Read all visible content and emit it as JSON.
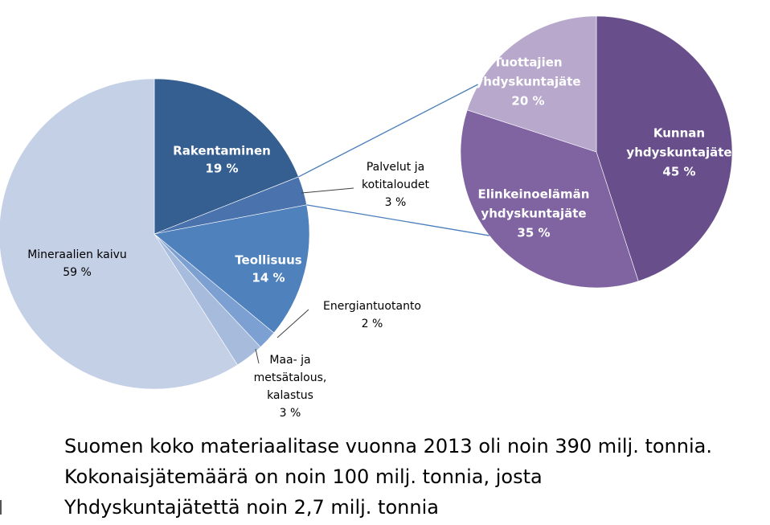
{
  "colors": {
    "main": [
      "#c4d0e5",
      "#365f91",
      "#4a72ad",
      "#4f81bd",
      "#7da0d2",
      "#a7bbdd"
    ],
    "sub": [
      "#684f8c",
      "#8064a2",
      "#b7a8cc"
    ],
    "connector": "#4a7ebb",
    "leader": "#404040"
  },
  "chart_data": [
    {
      "type": "pie",
      "labels": [
        "Mineraalien kaivu",
        "Rakentaminen",
        "Palvelut ja kotitaloudet",
        "Teollisuus",
        "Energiantuotanto",
        "Maa- ja metsätalous, kalastus"
      ],
      "values": [
        59,
        19,
        3,
        14,
        2,
        3
      ],
      "data_labels": [
        {
          "lines": [
            "Mineraalien kaivu"
          ],
          "value": "59 %"
        },
        {
          "lines": [
            "Rakentaminen"
          ],
          "value": "19 %"
        },
        {
          "lines": [
            "Palvelut ja",
            "kotitaloudet"
          ],
          "value": "3 %"
        },
        {
          "lines": [
            "Teollisuus"
          ],
          "value": "14 %"
        },
        {
          "lines": [
            "Energiantuotanto"
          ],
          "value": "2 %"
        },
        {
          "lines": [
            "Maa- ja",
            "metsätalous,",
            "kalastus"
          ],
          "value": "3 %"
        }
      ]
    },
    {
      "type": "pie",
      "labels": [
        "Kunnan yhdyskuntajäte",
        "Elinkeinoelämän yhdyskuntajäte",
        "Tuottajien yhdyskuntajäte"
      ],
      "values": [
        45,
        35,
        20
      ],
      "data_labels": [
        {
          "lines": [
            "Kunnan",
            "yhdyskuntajäte"
          ],
          "value": "45 %"
        },
        {
          "lines": [
            "Elinkeinoelämän",
            "yhdyskuntajäte"
          ],
          "value": "35 %"
        },
        {
          "lines": [
            "Tuottajien",
            "yhdyskuntajäte"
          ],
          "value": "20 %"
        }
      ]
    }
  ],
  "caption": {
    "line1": "Suomen koko materiaalitase vuonna  2013 oli noin 390 milj. tonnia.",
    "line2": "Kokonaisjätemäärä on noin 100 milj. tonnia, josta",
    "line3": "Yhdyskuntajätettä noin 2,7 milj. tonnia"
  }
}
